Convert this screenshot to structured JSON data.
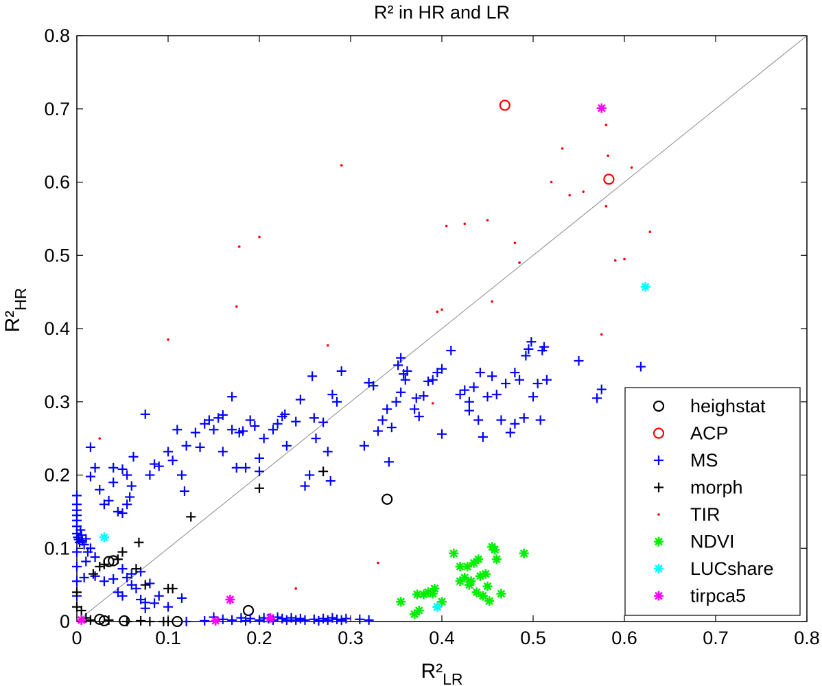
{
  "chart_data": {
    "type": "scatter",
    "title": "R² in HR and LR",
    "xlabel": {
      "main": "R²",
      "sub": "LR"
    },
    "ylabel": {
      "main": "R²",
      "sub": "HR"
    },
    "xlim": [
      0,
      0.8
    ],
    "ylim": [
      0,
      0.8
    ],
    "xticks": [
      0,
      0.1,
      0.2,
      0.3,
      0.4,
      0.5,
      0.6,
      0.7,
      0.8
    ],
    "yticks": [
      0,
      0.1,
      0.2,
      0.3,
      0.4,
      0.5,
      0.6,
      0.7,
      0.8
    ],
    "xtick_labels": [
      "0",
      "0.1",
      "0.2",
      "0.3",
      "0.4",
      "0.5",
      "0.6",
      "0.7",
      "0.8"
    ],
    "ytick_labels": [
      "0",
      "0.1",
      "0.2",
      "0.3",
      "0.4",
      "0.5",
      "0.6",
      "0.7",
      "0.8"
    ],
    "reference_line": {
      "from": [
        0,
        0
      ],
      "to": [
        0.8,
        0.8
      ],
      "color": "#888888"
    },
    "legend_position": "bottom-right",
    "series": [
      {
        "name": "heighstat",
        "marker": "circle",
        "color": "#000000",
        "points": [
          [
            0.035,
            0.082
          ],
          [
            0.04,
            0.083
          ],
          [
            0.025,
            0.003
          ],
          [
            0.03,
            0.001
          ],
          [
            0.052,
            0.001
          ],
          [
            0.11,
            0.0
          ],
          [
            0.188,
            0.015
          ],
          [
            0.34,
            0.167
          ]
        ]
      },
      {
        "name": "ACP",
        "marker": "circle",
        "color": "#ff0000",
        "points": [
          [
            0.469,
            0.705
          ],
          [
            0.583,
            0.604
          ]
        ]
      },
      {
        "name": "MS",
        "marker": "plus",
        "color": "#0000ff",
        "points": [
          [
            0.0,
            0.172
          ],
          [
            0.0,
            0.16
          ],
          [
            0.0,
            0.152
          ],
          [
            0.0,
            0.145
          ],
          [
            0.0,
            0.138
          ],
          [
            0.0,
            0.13
          ],
          [
            0.0,
            0.12
          ],
          [
            0.001,
            0.115
          ],
          [
            0.002,
            0.112
          ],
          [
            0.003,
            0.108
          ],
          [
            0.005,
            0.118
          ],
          [
            0.004,
            0.125
          ],
          [
            0.006,
            0.11
          ],
          [
            0.008,
            0.105
          ],
          [
            0.01,
            0.113
          ],
          [
            0.012,
            0.095
          ],
          [
            0.015,
            0.1
          ],
          [
            0.02,
            0.088
          ],
          [
            0.01,
            0.082
          ],
          [
            0.0,
            0.095
          ],
          [
            0.0,
            0.075
          ],
          [
            0.0,
            0.055
          ],
          [
            0.0,
            0.035
          ],
          [
            0.008,
            0.06
          ],
          [
            0.015,
            0.238
          ],
          [
            0.015,
            0.198
          ],
          [
            0.02,
            0.21
          ],
          [
            0.025,
            0.18
          ],
          [
            0.03,
            0.16
          ],
          [
            0.04,
            0.19
          ],
          [
            0.045,
            0.15
          ],
          [
            0.05,
            0.148
          ],
          [
            0.055,
            0.16
          ],
          [
            0.05,
            0.208
          ],
          [
            0.055,
            0.2
          ],
          [
            0.06,
            0.185
          ],
          [
            0.058,
            0.17
          ],
          [
            0.062,
            0.225
          ],
          [
            0.04,
            0.21
          ],
          [
            0.035,
            0.165
          ],
          [
            0.075,
            0.283
          ],
          [
            0.08,
            0.2
          ],
          [
            0.085,
            0.215
          ],
          [
            0.09,
            0.212
          ],
          [
            0.1,
            0.232
          ],
          [
            0.105,
            0.22
          ],
          [
            0.11,
            0.262
          ],
          [
            0.115,
            0.2
          ],
          [
            0.118,
            0.178
          ],
          [
            0.12,
            0.24
          ],
          [
            0.13,
            0.258
          ],
          [
            0.135,
            0.238
          ],
          [
            0.14,
            0.27
          ],
          [
            0.145,
            0.275
          ],
          [
            0.15,
            0.262
          ],
          [
            0.155,
            0.278
          ],
          [
            0.16,
            0.282
          ],
          [
            0.16,
            0.232
          ],
          [
            0.17,
            0.307
          ],
          [
            0.17,
            0.262
          ],
          [
            0.175,
            0.21
          ],
          [
            0.178,
            0.258
          ],
          [
            0.182,
            0.26
          ],
          [
            0.185,
            0.21
          ],
          [
            0.19,
            0.275
          ],
          [
            0.195,
            0.267
          ],
          [
            0.2,
            0.223
          ],
          [
            0.2,
            0.205
          ],
          [
            0.205,
            0.25
          ],
          [
            0.215,
            0.262
          ],
          [
            0.22,
            0.27
          ],
          [
            0.225,
            0.28
          ],
          [
            0.228,
            0.283
          ],
          [
            0.23,
            0.24
          ],
          [
            0.24,
            0.273
          ],
          [
            0.245,
            0.303
          ],
          [
            0.25,
            0.185
          ],
          [
            0.255,
            0.2
          ],
          [
            0.258,
            0.335
          ],
          [
            0.26,
            0.278
          ],
          [
            0.262,
            0.25
          ],
          [
            0.27,
            0.272
          ],
          [
            0.275,
            0.232
          ],
          [
            0.278,
            0.192
          ],
          [
            0.28,
            0.31
          ],
          [
            0.285,
            0.3
          ],
          [
            0.29,
            0.342
          ],
          [
            0.315,
            0.24
          ],
          [
            0.32,
            0.326
          ],
          [
            0.325,
            0.322
          ],
          [
            0.33,
            0.26
          ],
          [
            0.335,
            0.275
          ],
          [
            0.34,
            0.29
          ],
          [
            0.342,
            0.218
          ],
          [
            0.345,
            0.265
          ],
          [
            0.35,
            0.3
          ],
          [
            0.352,
            0.35
          ],
          [
            0.355,
            0.36
          ],
          [
            0.355,
            0.313
          ],
          [
            0.358,
            0.338
          ],
          [
            0.36,
            0.33
          ],
          [
            0.362,
            0.342
          ],
          [
            0.37,
            0.29
          ],
          [
            0.372,
            0.305
          ],
          [
            0.375,
            0.28
          ],
          [
            0.38,
            0.308
          ],
          [
            0.385,
            0.328
          ],
          [
            0.39,
            0.33
          ],
          [
            0.395,
            0.34
          ],
          [
            0.4,
            0.345
          ],
          [
            0.4,
            0.256
          ],
          [
            0.41,
            0.37
          ],
          [
            0.42,
            0.31
          ],
          [
            0.425,
            0.316
          ],
          [
            0.43,
            0.288
          ],
          [
            0.43,
            0.3
          ],
          [
            0.435,
            0.32
          ],
          [
            0.44,
            0.275
          ],
          [
            0.442,
            0.34
          ],
          [
            0.445,
            0.252
          ],
          [
            0.45,
            0.307
          ],
          [
            0.455,
            0.335
          ],
          [
            0.46,
            0.31
          ],
          [
            0.465,
            0.275
          ],
          [
            0.47,
            0.325
          ],
          [
            0.475,
            0.258
          ],
          [
            0.48,
            0.34
          ],
          [
            0.48,
            0.27
          ],
          [
            0.485,
            0.33
          ],
          [
            0.49,
            0.278
          ],
          [
            0.492,
            0.363
          ],
          [
            0.495,
            0.372
          ],
          [
            0.498,
            0.382
          ],
          [
            0.5,
            0.307
          ],
          [
            0.505,
            0.325
          ],
          [
            0.508,
            0.275
          ],
          [
            0.51,
            0.37
          ],
          [
            0.512,
            0.375
          ],
          [
            0.515,
            0.33
          ],
          [
            0.55,
            0.356
          ],
          [
            0.57,
            0.305
          ],
          [
            0.575,
            0.317
          ],
          [
            0.618,
            0.348
          ],
          [
            0.02,
            0.062
          ],
          [
            0.03,
            0.055
          ],
          [
            0.04,
            0.058
          ],
          [
            0.045,
            0.04
          ],
          [
            0.05,
            0.035
          ],
          [
            0.055,
            0.06
          ],
          [
            0.06,
            0.05
          ],
          [
            0.065,
            0.045
          ],
          [
            0.07,
            0.068
          ],
          [
            0.075,
            0.018
          ],
          [
            0.08,
            0.052
          ],
          [
            0.085,
            0.025
          ],
          [
            0.09,
            0.035
          ],
          [
            0.1,
            0.02
          ],
          [
            0.115,
            0.032
          ],
          [
            0.07,
            0.03
          ],
          [
            0.075,
            0.026
          ],
          [
            0.06,
            0.065
          ],
          [
            0.05,
            0.072
          ],
          [
            0.12,
            0.0
          ],
          [
            0.14,
            0.001
          ],
          [
            0.15,
            0.006
          ],
          [
            0.16,
            0.003
          ],
          [
            0.17,
            0.002
          ],
          [
            0.18,
            0.005
          ],
          [
            0.185,
            0.001
          ],
          [
            0.19,
            0.004
          ],
          [
            0.2,
            0.002
          ],
          [
            0.205,
            0.005
          ],
          [
            0.21,
            0.004
          ],
          [
            0.215,
            0.002
          ],
          [
            0.22,
            0.006
          ],
          [
            0.225,
            0.004
          ],
          [
            0.23,
            0.002
          ],
          [
            0.235,
            0.005
          ],
          [
            0.24,
            0.002
          ],
          [
            0.245,
            0.004
          ],
          [
            0.25,
            0.002
          ],
          [
            0.26,
            0.003
          ],
          [
            0.265,
            0.001
          ],
          [
            0.27,
            0.004
          ],
          [
            0.275,
            0.002
          ],
          [
            0.28,
            0.005
          ],
          [
            0.285,
            0.003
          ],
          [
            0.29,
            0.002
          ],
          [
            0.295,
            0.004
          ],
          [
            0.31,
            0.003
          ],
          [
            0.32,
            0.002
          ]
        ]
      },
      {
        "name": "morph",
        "marker": "plus",
        "color": "#000000",
        "points": [
          [
            0.0,
            0.04
          ],
          [
            0.0,
            0.02
          ],
          [
            0.005,
            0.015
          ],
          [
            0.01,
            0.005
          ],
          [
            0.015,
            0.002
          ],
          [
            0.018,
            0.065
          ],
          [
            0.025,
            0.075
          ],
          [
            0.03,
            0.078
          ],
          [
            0.045,
            0.085
          ],
          [
            0.05,
            0.095
          ],
          [
            0.065,
            0.072
          ],
          [
            0.068,
            0.108
          ],
          [
            0.075,
            0.05
          ],
          [
            0.1,
            0.045
          ],
          [
            0.105,
            0.045
          ],
          [
            0.125,
            0.143
          ],
          [
            0.2,
            0.182
          ],
          [
            0.27,
            0.205
          ],
          [
            0.035,
            0.002
          ],
          [
            0.055,
            0.0
          ],
          [
            0.07,
            0.001
          ],
          [
            0.08,
            0.0
          ],
          [
            0.095,
            0.0
          ],
          [
            0.1,
            0.0
          ]
        ]
      },
      {
        "name": "TIR",
        "marker": "dot",
        "color": "#ff0000",
        "points": [
          [
            0.025,
            0.25
          ],
          [
            0.1,
            0.385
          ],
          [
            0.175,
            0.43
          ],
          [
            0.178,
            0.512
          ],
          [
            0.2,
            0.525
          ],
          [
            0.24,
            0.045
          ],
          [
            0.275,
            0.377
          ],
          [
            0.29,
            0.623
          ],
          [
            0.33,
            0.08
          ],
          [
            0.39,
            0.298
          ],
          [
            0.395,
            0.423
          ],
          [
            0.4,
            0.426
          ],
          [
            0.405,
            0.54
          ],
          [
            0.425,
            0.543
          ],
          [
            0.45,
            0.548
          ],
          [
            0.455,
            0.437
          ],
          [
            0.48,
            0.517
          ],
          [
            0.485,
            0.49
          ],
          [
            0.485,
            0.49
          ],
          [
            0.52,
            0.6
          ],
          [
            0.532,
            0.646
          ],
          [
            0.54,
            0.582
          ],
          [
            0.555,
            0.587
          ],
          [
            0.575,
            0.392
          ],
          [
            0.58,
            0.678
          ],
          [
            0.58,
            0.567
          ],
          [
            0.582,
            0.636
          ],
          [
            0.59,
            0.493
          ],
          [
            0.6,
            0.495
          ],
          [
            0.608,
            0.62
          ],
          [
            0.628,
            0.532
          ]
        ]
      },
      {
        "name": "NDVI",
        "marker": "star",
        "color": "#00ee00",
        "points": [
          [
            0.355,
            0.027
          ],
          [
            0.37,
            0.01
          ],
          [
            0.373,
            0.037
          ],
          [
            0.375,
            0.015
          ],
          [
            0.38,
            0.037
          ],
          [
            0.385,
            0.04
          ],
          [
            0.39,
            0.038
          ],
          [
            0.392,
            0.045
          ],
          [
            0.395,
            0.02
          ],
          [
            0.4,
            0.027
          ],
          [
            0.413,
            0.093
          ],
          [
            0.42,
            0.055
          ],
          [
            0.42,
            0.075
          ],
          [
            0.425,
            0.06
          ],
          [
            0.428,
            0.075
          ],
          [
            0.43,
            0.05
          ],
          [
            0.432,
            0.055
          ],
          [
            0.435,
            0.08
          ],
          [
            0.438,
            0.04
          ],
          [
            0.44,
            0.085
          ],
          [
            0.442,
            0.062
          ],
          [
            0.445,
            0.035
          ],
          [
            0.448,
            0.065
          ],
          [
            0.45,
            0.048
          ],
          [
            0.452,
            0.028
          ],
          [
            0.455,
            0.102
          ],
          [
            0.458,
            0.098
          ],
          [
            0.46,
            0.085
          ],
          [
            0.465,
            0.038
          ],
          [
            0.49,
            0.093
          ]
        ]
      },
      {
        "name": "LUCshare",
        "marker": "star",
        "color": "#00ffff",
        "points": [
          [
            0.03,
            0.115
          ],
          [
            0.395,
            0.02
          ],
          [
            0.623,
            0.457
          ]
        ]
      },
      {
        "name": "tirpca5",
        "marker": "star",
        "color": "#ff00ff",
        "points": [
          [
            0.005,
            0.002
          ],
          [
            0.152,
            0.001
          ],
          [
            0.168,
            0.03
          ],
          [
            0.212,
            0.005
          ],
          [
            0.575,
            0.701
          ]
        ]
      }
    ]
  }
}
